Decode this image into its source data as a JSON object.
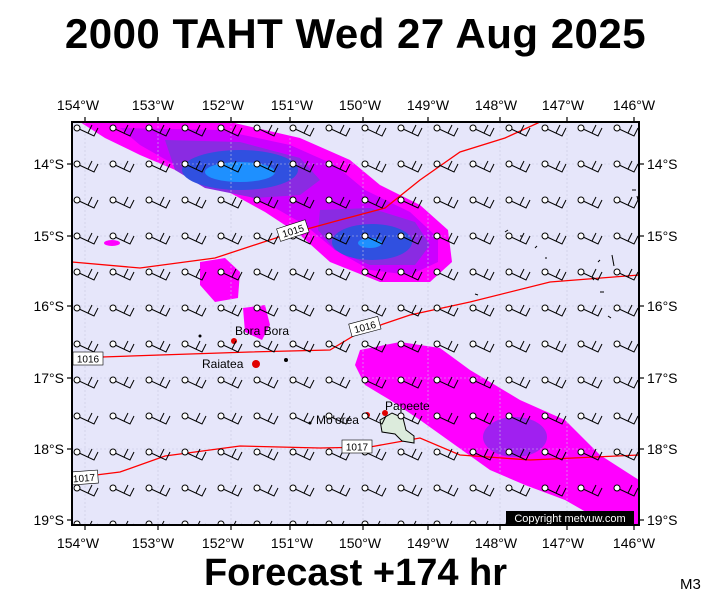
{
  "title": "2000 TAHT Wed 27 Aug 2025",
  "footer": "Forecast +174 hr",
  "model_label": "M3",
  "copyright": "Copyright metvuw.com",
  "colors": {
    "background_sea": "#e6e6fa",
    "isobar": "#ff0000",
    "rain_light": "#ff00ff",
    "rain_moderate": "#a020f0",
    "rain_heavy": "#3050e0",
    "rain_extreme": "#1e90ff"
  },
  "axes": {
    "lon_labels": [
      "154°W",
      "153°W",
      "152°W",
      "151°W",
      "150°W",
      "149°W",
      "148°W",
      "147°W",
      "146°W"
    ],
    "lat_labels": [
      "14°S",
      "15°S",
      "16°S",
      "17°S",
      "18°S",
      "19°S"
    ]
  },
  "places": [
    {
      "name": "Bora Bora"
    },
    {
      "name": "Raiatea"
    },
    {
      "name": "Mo'orea"
    },
    {
      "name": "Papeete"
    }
  ],
  "isobars": [
    {
      "label": "1015"
    },
    {
      "label": "1016"
    },
    {
      "label": "1016"
    },
    {
      "label": "1017"
    },
    {
      "label": "1017"
    }
  ]
}
